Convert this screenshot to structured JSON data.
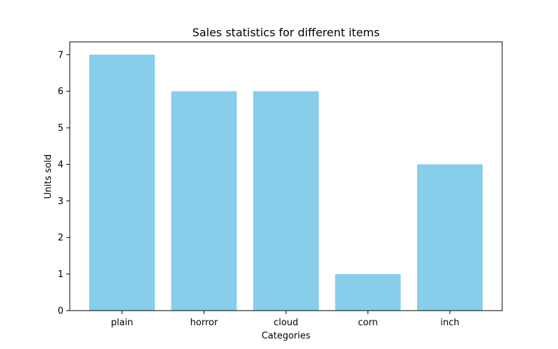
{
  "chart_data": {
    "type": "bar",
    "title": "Sales statistics for different items",
    "xlabel": "Categories",
    "ylabel": "Units sold",
    "categories": [
      "plain",
      "horror",
      "cloud",
      "corn",
      "inch"
    ],
    "values": [
      7,
      6,
      6,
      1,
      4
    ],
    "ylim": [
      0,
      7.35
    ],
    "yticks": [
      0,
      1,
      2,
      3,
      4,
      5,
      6,
      7
    ],
    "grid": false,
    "bar_color": "#87ceeb",
    "axis_color": "#000000"
  }
}
